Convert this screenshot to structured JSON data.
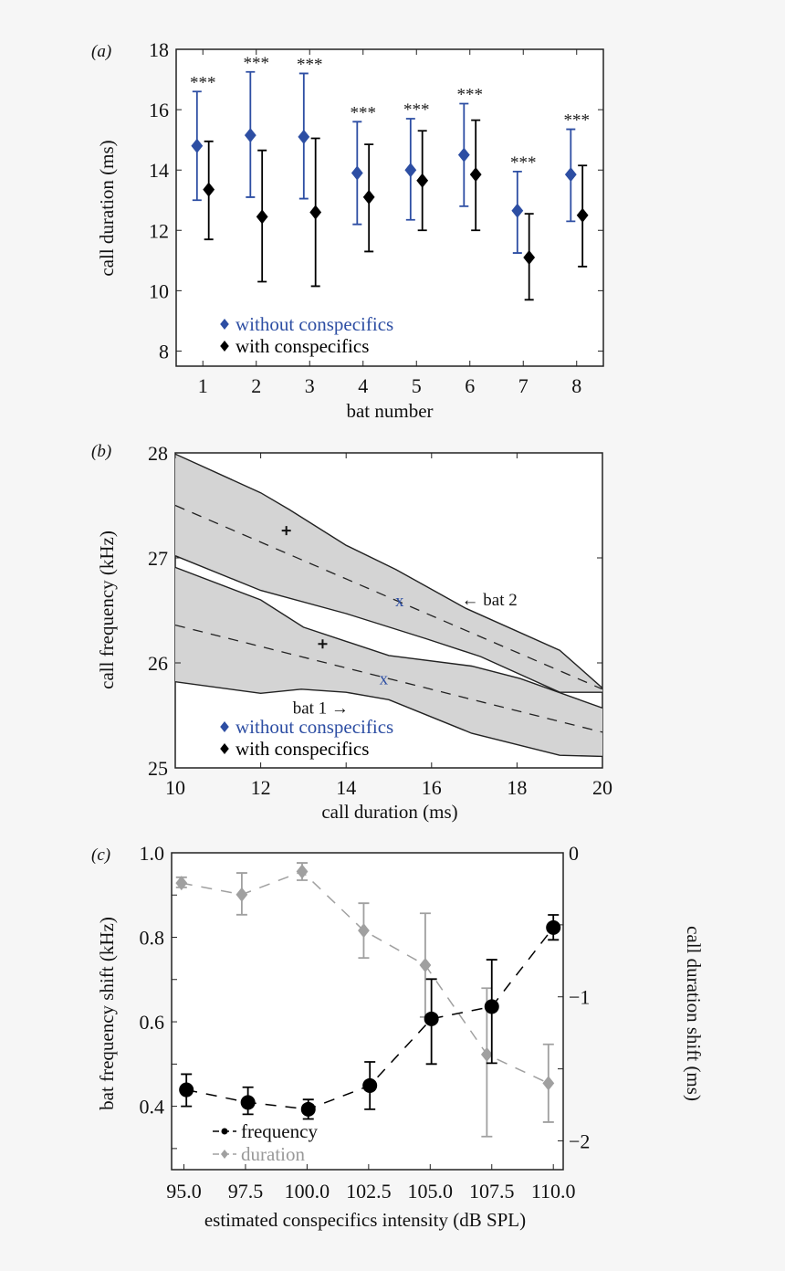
{
  "chart_data": [
    {
      "panel_label": "(a)",
      "type": "scatter",
      "xlabel": "bat number",
      "ylabel": "call duration (ms)",
      "xlim": [
        0.5,
        8.5
      ],
      "ylim": [
        7.5,
        18
      ],
      "xticks": [
        1,
        2,
        3,
        4,
        5,
        6,
        7,
        8
      ],
      "yticks": [
        8,
        10,
        12,
        14,
        16,
        18
      ],
      "grid": false,
      "legend_placement": "bottom-left",
      "categories": [
        1,
        2,
        3,
        4,
        5,
        6,
        7,
        8
      ],
      "series": [
        {
          "name": "without conspecifics",
          "color": "#2d4ea3",
          "values": [
            14.8,
            15.15,
            15.1,
            13.9,
            14.0,
            14.5,
            12.65,
            13.85
          ],
          "lower": [
            13.0,
            13.1,
            13.05,
            12.2,
            12.35,
            12.8,
            11.25,
            12.3
          ],
          "upper": [
            16.6,
            17.25,
            17.2,
            15.6,
            15.7,
            16.2,
            13.95,
            15.35
          ]
        },
        {
          "name": "with conspecifics",
          "color": "#000000",
          "values": [
            13.35,
            12.45,
            12.6,
            13.1,
            13.65,
            13.85,
            11.1,
            12.5
          ],
          "lower": [
            11.7,
            10.3,
            10.15,
            11.3,
            12.0,
            12.0,
            9.7,
            10.8
          ],
          "upper": [
            14.95,
            14.65,
            15.05,
            14.85,
            15.3,
            15.65,
            12.55,
            14.15
          ]
        }
      ],
      "significance": [
        "***",
        "***",
        "***",
        "***",
        "***",
        "***",
        "***",
        "***"
      ]
    },
    {
      "panel_label": "(b)",
      "type": "area",
      "xlabel": "call duration (ms)",
      "ylabel": "call frequency (kHz)",
      "xlim": [
        10,
        20
      ],
      "ylim": [
        25,
        28
      ],
      "xticks": [
        10,
        12,
        14,
        16,
        18,
        20
      ],
      "yticks": [
        25,
        26,
        27,
        28
      ],
      "grid": false,
      "band_color": "#d4d4d4",
      "bands": [
        {
          "label": "← bat 2",
          "upper": [
            [
              10,
              27.99
            ],
            [
              12,
              27.62
            ],
            [
              12.67,
              27.46
            ],
            [
              14,
              27.12
            ],
            [
              15.16,
              26.89
            ],
            [
              16.8,
              26.52
            ],
            [
              19,
              26.12
            ],
            [
              20,
              25.76
            ]
          ],
          "lower": [
            [
              10,
              27.02
            ],
            [
              12,
              26.69
            ],
            [
              14,
              26.47
            ],
            [
              15.87,
              26.23
            ],
            [
              17.15,
              26.06
            ],
            [
              19,
              25.72
            ],
            [
              20,
              25.72
            ]
          ],
          "fit": [
            [
              10,
              27.5
            ],
            [
              20,
              25.75
            ]
          ],
          "with_conspecifics": [
            12.6,
            27.26
          ],
          "without_conspecifics": [
            15.25,
            26.59
          ],
          "label_at": [
            16.7,
            26.6
          ]
        },
        {
          "label": "bat 1 →",
          "upper": [
            [
              10,
              26.91
            ],
            [
              12,
              26.6
            ],
            [
              13,
              26.34
            ],
            [
              15,
              26.07
            ],
            [
              16.94,
              25.97
            ],
            [
              18.08,
              25.85
            ],
            [
              20,
              25.57
            ]
          ],
          "lower": [
            [
              10,
              25.82
            ],
            [
              12,
              25.71
            ],
            [
              12.95,
              25.75
            ],
            [
              14,
              25.72
            ],
            [
              15,
              25.65
            ],
            [
              16.94,
              25.33
            ],
            [
              19,
              25.12
            ],
            [
              20,
              25.11
            ]
          ],
          "fit": [
            [
              10,
              26.36
            ],
            [
              20,
              25.34
            ]
          ],
          "with_conspecifics": [
            13.45,
            26.18
          ],
          "without_conspecifics": [
            14.88,
            25.85
          ],
          "label_at": [
            12.75,
            25.57
          ]
        }
      ],
      "marker_without": "x",
      "marker_with": "+",
      "legend": [
        {
          "name": "without conspecifics",
          "color": "#2d4ea3"
        },
        {
          "name": "with conspecifics",
          "color": "#000000"
        }
      ],
      "legend_placement": "bottom-left"
    },
    {
      "panel_label": "(c)",
      "type": "line",
      "xlabel": "estimated conspecifics intensity (dB SPL)",
      "ylabel": "bat frequency shift (kHz)",
      "ylabel_right": "call duration shift (ms)",
      "xlim": [
        94.5,
        110.4
      ],
      "ylim": [
        0.25,
        1.0
      ],
      "ylim_right": [
        -2.2,
        0
      ],
      "xticks": [
        "95.0",
        "97.5",
        "100.0",
        "102.5",
        "105.0",
        "107.5",
        "110.0"
      ],
      "yticks": [
        "0.4",
        "0.6",
        "0.8",
        "1.0"
      ],
      "yticks_right": [
        "−2",
        "−1",
        "0"
      ],
      "grid": false,
      "legend_placement": "bottom-left",
      "series": [
        {
          "name": "frequency",
          "axis": "left",
          "color": "#000000",
          "x": [
            95.1,
            97.6,
            100.05,
            102.55,
            105.05,
            107.5,
            110.0
          ],
          "y": [
            0.439,
            0.409,
            0.393,
            0.449,
            0.607,
            0.636,
            0.823
          ],
          "lower": [
            0.4,
            0.381,
            0.37,
            0.393,
            0.5,
            0.502,
            0.794
          ],
          "upper": [
            0.476,
            0.445,
            0.416,
            0.505,
            0.701,
            0.747,
            0.853
          ]
        },
        {
          "name": "duration",
          "axis": "right",
          "color": "#a0a0a0",
          "x": [
            94.9,
            97.35,
            99.8,
            102.3,
            104.8,
            107.3,
            109.8
          ],
          "y": [
            -0.21,
            -0.29,
            -0.13,
            -0.54,
            -0.78,
            -1.4,
            -1.6
          ],
          "lower": [
            -0.24,
            -0.43,
            -0.19,
            -0.73,
            -1.14,
            -1.97,
            -1.87
          ],
          "upper": [
            -0.17,
            -0.14,
            -0.07,
            -0.35,
            -0.42,
            -0.94,
            -1.33
          ]
        }
      ]
    }
  ]
}
